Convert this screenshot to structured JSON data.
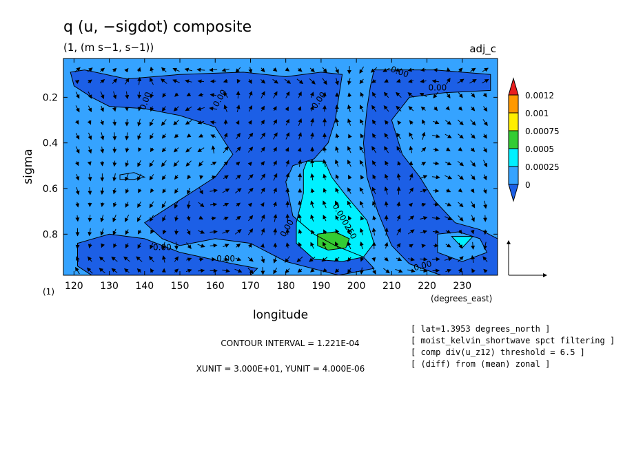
{
  "chart_data": {
    "type": "heatmap",
    "title": "q (u, −sigdot) composite",
    "subtitle": "(1, (m s−1, s−1))",
    "label_right": "adj_c",
    "xlabel": "longitude",
    "ylabel": "sigma",
    "x_units": "(degrees_east)",
    "y_units": "(1)",
    "xlim": [
      117,
      240
    ],
    "ylim": [
      0.03,
      0.98
    ],
    "y_inverted": true,
    "x_ticks": [
      120,
      130,
      140,
      150,
      160,
      170,
      180,
      190,
      200,
      210,
      220,
      230
    ],
    "y_ticks": [
      0.2,
      0.4,
      0.6,
      0.8
    ],
    "x_tick_labels": [
      "120",
      "130",
      "140",
      "150",
      "160",
      "170",
      "180",
      "190",
      "200",
      "210",
      "220",
      "230"
    ],
    "y_tick_labels": [
      "0.2",
      "0.4",
      "0.6",
      "0.8"
    ],
    "colorbar": {
      "levels": [
        0,
        0.00025,
        0.0005,
        0.00075,
        0.001,
        0.0012
      ],
      "labels": [
        "0",
        "0.00025",
        "0.0005",
        "0.00075",
        "0.001",
        "0.0012"
      ],
      "colors": [
        "#1c5fe6",
        "#35a3ff",
        "#00f0ff",
        "#33cc33",
        "#ffee00",
        "#ff9900",
        "#e81e1e"
      ]
    },
    "contour_labels": [
      {
        "text": "0.00",
        "lon": 141,
        "sigma": 0.22,
        "rot": -70
      },
      {
        "text": "0.00",
        "lon": 162,
        "sigma": 0.21,
        "rot": -60
      },
      {
        "text": "0.00",
        "lon": 190,
        "sigma": 0.22,
        "rot": -55
      },
      {
        "text": "0.00",
        "lon": 212,
        "sigma": 0.1,
        "rot": 20
      },
      {
        "text": "0.00",
        "lon": 223,
        "sigma": 0.17,
        "rot": 0
      },
      {
        "text": "0.00",
        "lon": 145,
        "sigma": 0.87,
        "rot": 0
      },
      {
        "text": "0.00",
        "lon": 163,
        "sigma": 0.92,
        "rot": 0
      },
      {
        "text": "0.00",
        "lon": 181,
        "sigma": 0.78,
        "rot": -60
      },
      {
        "text": "0.00",
        "lon": 219,
        "sigma": 0.95,
        "rot": -15
      },
      {
        "text": "0.000250",
        "lon": 196,
        "sigma": 0.75,
        "rot": 60
      }
    ],
    "contour_interval": "CONTOUR INTERVAL = 1.221E-04",
    "units_line": "XUNIT = 3.000E+01, YUNIT = 4.000E-06",
    "info_lines": [
      "[ lat=1.3953 degrees_north ]",
      "[ moist_kelvin_shortwave spct filtering ]",
      "[ comp div(u_z12) threshold = 6.5 ]",
      "[ (diff) from (mean) zonal ]"
    ],
    "regions": [
      {
        "level": 1,
        "points": [
          [
            117,
            0.03
          ],
          [
            240,
            0.03
          ],
          [
            240,
            0.98
          ],
          [
            117,
            0.98
          ]
        ]
      },
      {
        "level": 0,
        "points": [
          [
            123,
            0.08
          ],
          [
            135,
            0.12
          ],
          [
            150,
            0.1
          ],
          [
            168,
            0.09
          ],
          [
            180,
            0.11
          ],
          [
            190,
            0.09
          ],
          [
            196,
            0.1
          ],
          [
            194,
            0.3
          ],
          [
            192,
            0.4
          ],
          [
            188,
            0.47
          ],
          [
            182,
            0.5
          ],
          [
            180,
            0.57
          ],
          [
            182,
            0.72
          ],
          [
            188,
            0.8
          ],
          [
            194,
            0.85
          ],
          [
            202,
            0.9
          ],
          [
            205,
            0.95
          ],
          [
            195,
            0.98
          ],
          [
            180,
            0.92
          ],
          [
            170,
            0.84
          ],
          [
            160,
            0.82
          ],
          [
            150,
            0.85
          ],
          [
            145,
            0.82
          ],
          [
            140,
            0.75
          ],
          [
            150,
            0.65
          ],
          [
            160,
            0.55
          ],
          [
            165,
            0.45
          ],
          [
            160,
            0.33
          ],
          [
            150,
            0.28
          ],
          [
            140,
            0.25
          ],
          [
            130,
            0.24
          ],
          [
            125,
            0.2
          ],
          [
            120,
            0.15
          ],
          [
            119,
            0.09
          ]
        ]
      },
      {
        "level": 0,
        "points": [
          [
            121,
            0.84
          ],
          [
            130,
            0.8
          ],
          [
            140,
            0.82
          ],
          [
            150,
            0.88
          ],
          [
            165,
            0.93
          ],
          [
            172,
            0.95
          ],
          [
            170,
            0.98
          ],
          [
            125,
            0.98
          ],
          [
            121,
            0.94
          ]
        ]
      },
      {
        "level": 0,
        "points": [
          [
            205,
            0.08
          ],
          [
            222,
            0.08
          ],
          [
            238,
            0.1
          ],
          [
            238,
            0.17
          ],
          [
            225,
            0.18
          ],
          [
            215,
            0.2
          ],
          [
            210,
            0.3
          ],
          [
            213,
            0.45
          ],
          [
            218,
            0.55
          ],
          [
            222,
            0.65
          ],
          [
            228,
            0.75
          ],
          [
            235,
            0.78
          ],
          [
            240,
            0.82
          ],
          [
            240,
            0.98
          ],
          [
            224,
            0.98
          ],
          [
            215,
            0.93
          ],
          [
            210,
            0.85
          ],
          [
            206,
            0.7
          ],
          [
            203,
            0.55
          ],
          [
            202,
            0.4
          ],
          [
            203,
            0.25
          ],
          [
            204,
            0.15
          ]
        ]
      },
      {
        "level": 1,
        "points": [
          [
            223,
            0.8
          ],
          [
            229,
            0.79
          ],
          [
            235,
            0.82
          ],
          [
            237,
            0.88
          ],
          [
            230,
            0.92
          ],
          [
            223,
            0.88
          ]
        ]
      },
      {
        "level": 1,
        "points": [
          [
            133,
            0.54
          ],
          [
            137,
            0.53
          ],
          [
            140,
            0.55
          ],
          [
            137,
            0.56
          ],
          [
            133,
            0.56
          ]
        ]
      },
      {
        "level": 2,
        "points": [
          [
            186,
            0.48
          ],
          [
            191,
            0.48
          ],
          [
            193,
            0.55
          ],
          [
            197,
            0.63
          ],
          [
            203,
            0.74
          ],
          [
            205,
            0.84
          ],
          [
            202,
            0.9
          ],
          [
            196,
            0.92
          ],
          [
            188,
            0.91
          ],
          [
            183,
            0.84
          ],
          [
            183,
            0.75
          ],
          [
            185,
            0.62
          ],
          [
            185,
            0.52
          ]
        ]
      },
      {
        "level": 3,
        "points": [
          [
            189,
            0.8
          ],
          [
            194,
            0.79
          ],
          [
            198,
            0.82
          ],
          [
            197,
            0.86
          ],
          [
            192,
            0.87
          ],
          [
            189,
            0.85
          ]
        ]
      },
      {
        "level": 2,
        "points": [
          [
            227,
            0.81
          ],
          [
            233,
            0.81
          ],
          [
            230,
            0.86
          ]
        ]
      }
    ],
    "vectors": {
      "lon": [
        121,
        124.5,
        128,
        131.5,
        135,
        138.5,
        142,
        145.5,
        149,
        152.5,
        156,
        159.5,
        163,
        166.5,
        170,
        173.5,
        177,
        180.5,
        184,
        187.5,
        191,
        194.5,
        198,
        201.5,
        205,
        208.5,
        212,
        215.5,
        219,
        222.5,
        226,
        229.5,
        233,
        236.5
      ],
      "sigma": [
        0.08,
        0.13,
        0.19,
        0.25,
        0.31,
        0.37,
        0.43,
        0.49,
        0.55,
        0.61,
        0.67,
        0.73,
        0.79,
        0.85,
        0.91,
        0.96
      ],
      "scale_label_x": "XUNIT",
      "reference": {
        "u": 30,
        "w": 4e-06
      }
    }
  }
}
